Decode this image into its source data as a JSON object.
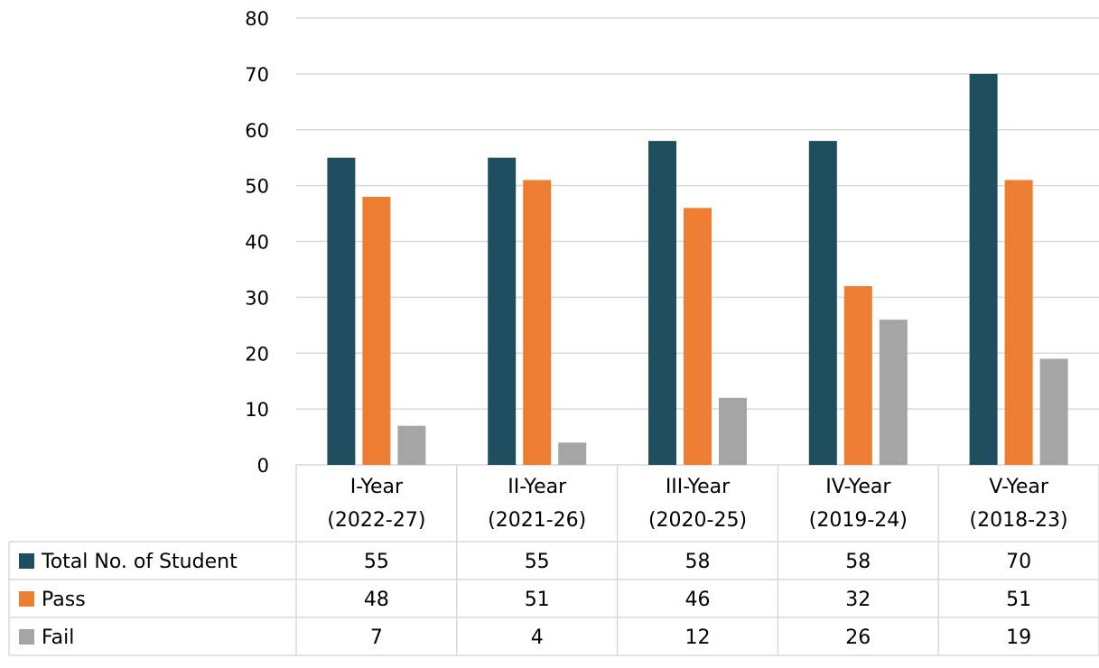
{
  "chart_data": {
    "type": "bar",
    "title": "",
    "xlabel": "",
    "ylabel": "",
    "ylim": [
      0,
      80
    ],
    "yticks": [
      0,
      10,
      20,
      30,
      40,
      50,
      60,
      70,
      80
    ],
    "grid": true,
    "legend": "data-table",
    "categories": [
      [
        "I-Year",
        "(2022-27)"
      ],
      [
        "II-Year",
        "(2021-26)"
      ],
      [
        "III-Year",
        "(2020-25)"
      ],
      [
        "IV-Year",
        "(2019-24)"
      ],
      [
        "V-Year",
        "(2018-23)"
      ]
    ],
    "series": [
      {
        "name": "Total No. of Student",
        "color": "#1f4e5f",
        "values": [
          55,
          55,
          58,
          58,
          70
        ]
      },
      {
        "name": "Pass",
        "color": "#ed7d31",
        "values": [
          48,
          51,
          46,
          32,
          51
        ]
      },
      {
        "name": "Fail",
        "color": "#a5a5a5",
        "values": [
          7,
          4,
          12,
          26,
          19
        ]
      }
    ]
  }
}
